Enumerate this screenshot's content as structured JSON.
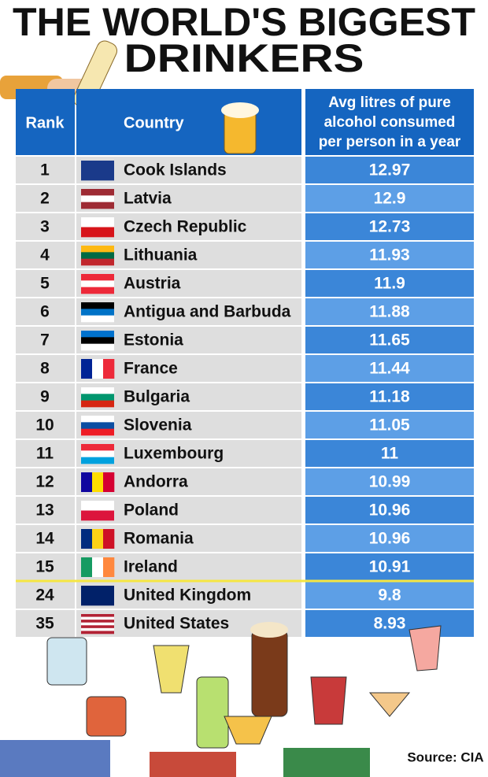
{
  "header": {
    "title_lines": [
      "THE WORLD'S BIGGEST",
      "DRINKERS"
    ]
  },
  "table": {
    "columns": [
      "Rank",
      "Country",
      "Avg litres of pure alcohol consumed per person in a year"
    ],
    "column_lines": [
      "Avg litres of pure",
      "alcohol consumed",
      "per person in a year"
    ],
    "rows": [
      [
        1,
        "Cook Islands",
        12.97
      ],
      [
        2,
        "Latvia",
        12.9
      ],
      [
        3,
        "Czech Republic",
        12.73
      ],
      [
        4,
        "Lithuania",
        11.93
      ],
      [
        5,
        "Austria",
        11.9
      ],
      [
        6,
        "Antigua and Barbuda",
        11.88
      ],
      [
        7,
        "Estonia",
        11.65
      ],
      [
        8,
        "France",
        11.44
      ],
      [
        9,
        "Bulgaria",
        11.18
      ],
      [
        10,
        "Slovenia",
        11.05
      ],
      [
        11,
        "Luxembourg",
        11
      ],
      [
        12,
        "Andorra",
        10.99
      ],
      [
        13,
        "Poland",
        10.96
      ],
      [
        14,
        "Romania",
        10.96
      ],
      [
        15,
        "Ireland",
        10.91
      ],
      [
        24,
        "United Kingdom",
        9.8
      ],
      [
        35,
        "United States",
        8.93
      ]
    ]
  },
  "footer": {
    "source": "Source: CIA"
  }
}
